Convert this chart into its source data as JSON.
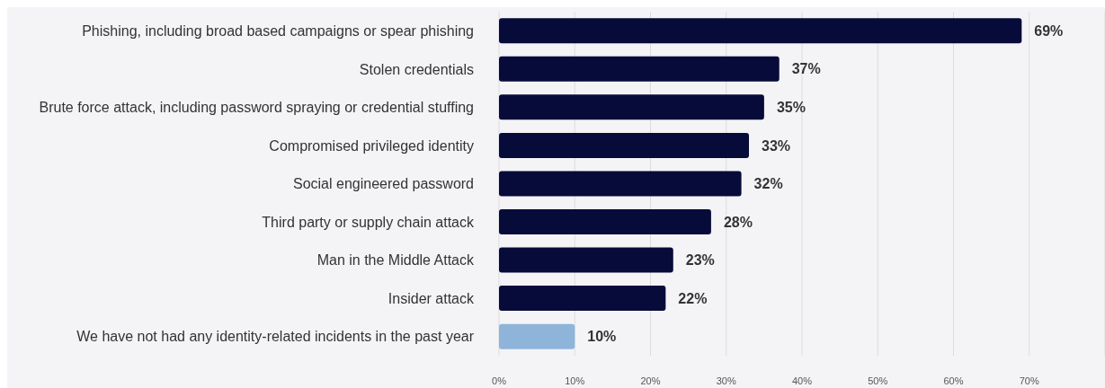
{
  "chart_data": {
    "type": "bar",
    "orientation": "horizontal",
    "categories": [
      "Phishing, including broad based campaigns or spear phishing",
      "Stolen credentials",
      "Brute force attack, including password spraying or credential stuffing",
      "Compromised privileged identity",
      "Social engineered password",
      "Third party or supply chain attack",
      "Man in the Middle Attack",
      "Insider attack",
      "We have not had any identity-related incidents in the past year"
    ],
    "values": [
      69,
      37,
      35,
      33,
      32,
      28,
      23,
      22,
      10
    ],
    "colors": [
      "#070b3a",
      "#070b3a",
      "#070b3a",
      "#070b3a",
      "#070b3a",
      "#070b3a",
      "#070b3a",
      "#070b3a",
      "#8fb4da"
    ],
    "value_labels": [
      "69%",
      "37%",
      "35%",
      "33%",
      "32%",
      "28%",
      "23%",
      "22%",
      "10%"
    ],
    "xlim": [
      0,
      80
    ],
    "xticks": [
      {
        "value": 0,
        "label": "0%"
      },
      {
        "value": 10,
        "label": "10%"
      },
      {
        "value": 20,
        "label": "20%"
      },
      {
        "value": 30,
        "label": "30%"
      },
      {
        "value": 40,
        "label": "40%"
      },
      {
        "value": 50,
        "label": "50%"
      },
      {
        "value": 60,
        "label": "60%"
      },
      {
        "value": 70,
        "label": "70%"
      }
    ],
    "grid": "x"
  }
}
